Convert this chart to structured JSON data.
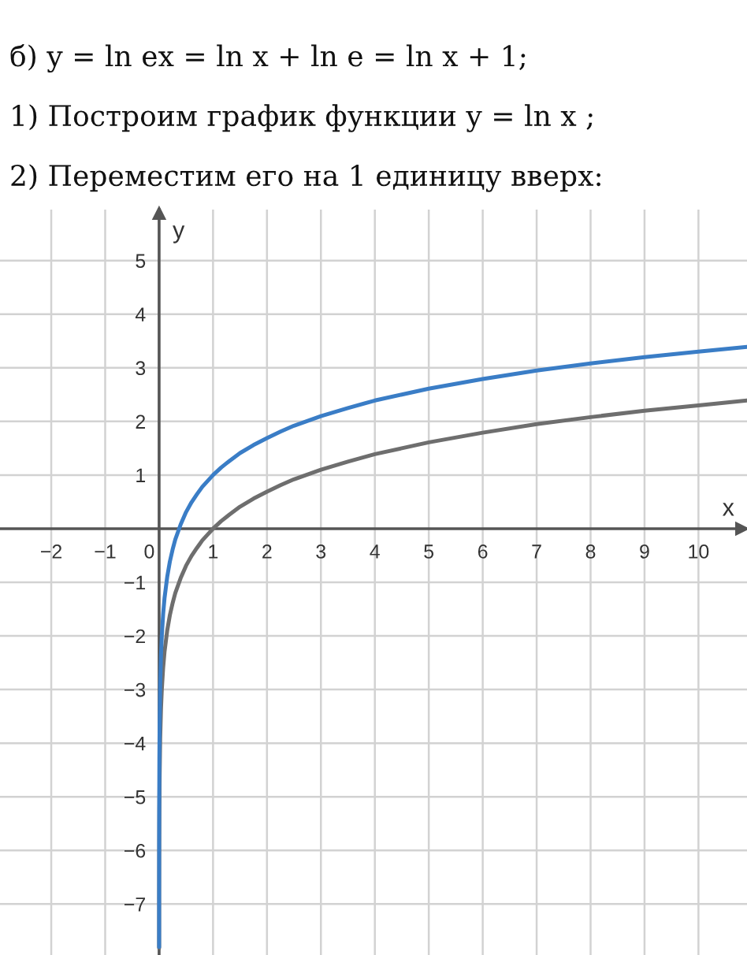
{
  "chart_data": {
    "type": "line",
    "annotations": [
      "б) y = ln ex = ln x + ln e = ln x + 1;",
      "1) Построим график функции y = ln x ;",
      "2) Переместим его на 1 единицу вверх:"
    ],
    "xlabel": "x",
    "ylabel": "y",
    "series": [
      {
        "color": "#6e6e6e",
        "x": [
          0.0004,
          0.001,
          0.002,
          0.005,
          0.01,
          0.02,
          0.035,
          0.05,
          0.075,
          0.1,
          0.15,
          0.2,
          0.25,
          0.3,
          0.4,
          0.5,
          0.6,
          0.7,
          0.75,
          0.8,
          0.9,
          1,
          1.15,
          1.25,
          1.3,
          1.5,
          1.75,
          2,
          2.25,
          2.5,
          3,
          3.5,
          4,
          4.5,
          5,
          6,
          7,
          8,
          9,
          10,
          10.9
        ],
        "values": [
          -7.82,
          -6.91,
          -6.21,
          -5.3,
          -4.61,
          -3.91,
          -3.35,
          -3.0,
          -2.59,
          -2.3,
          -1.9,
          -1.61,
          -1.39,
          -1.2,
          -0.92,
          -0.69,
          -0.51,
          -0.36,
          -0.29,
          -0.22,
          -0.11,
          0.0,
          0.14,
          0.22,
          0.26,
          0.41,
          0.56,
          0.69,
          0.81,
          0.92,
          1.1,
          1.25,
          1.39,
          1.5,
          1.61,
          1.79,
          1.95,
          2.08,
          2.2,
          2.3,
          2.39
        ]
      },
      {
        "color": "#3a7dc6",
        "x": [
          0.00015,
          0.0004,
          0.001,
          0.002,
          0.005,
          0.01,
          0.02,
          0.035,
          0.05,
          0.075,
          0.1,
          0.15,
          0.2,
          0.25,
          0.3,
          0.4,
          0.5,
          0.6,
          0.7,
          0.75,
          0.8,
          0.9,
          1,
          1.15,
          1.25,
          1.3,
          1.5,
          1.75,
          2,
          2.25,
          2.5,
          3,
          3.5,
          4,
          4.5,
          5,
          6,
          7,
          8,
          9,
          10,
          10.9
        ],
        "values": [
          -7.8,
          -6.82,
          -5.91,
          -5.21,
          -4.3,
          -3.61,
          -2.91,
          -2.35,
          -2.0,
          -1.59,
          -1.3,
          -0.9,
          -0.61,
          -0.39,
          -0.2,
          0.08,
          0.31,
          0.49,
          0.64,
          0.71,
          0.78,
          0.89,
          1.0,
          1.14,
          1.22,
          1.26,
          1.41,
          1.56,
          1.69,
          1.81,
          1.92,
          2.1,
          2.25,
          2.39,
          2.5,
          2.61,
          2.79,
          2.95,
          3.08,
          3.2,
          3.3,
          3.39
        ]
      }
    ],
    "xlim": [
      -2.95,
      10.9
    ],
    "ylim": [
      -7.95,
      5.95
    ],
    "xticks": [
      {
        "value": -2,
        "label": "−2"
      },
      {
        "value": -1,
        "label": "−1"
      },
      0,
      1,
      2,
      3,
      4,
      5,
      6,
      7,
      8,
      9,
      10
    ],
    "yticks": [
      {
        "value": -7,
        "label": "−7"
      },
      {
        "value": -6,
        "label": "−6"
      },
      {
        "value": -5,
        "label": "−5"
      },
      {
        "value": -4,
        "label": "−4"
      },
      {
        "value": -3,
        "label": "−3"
      },
      {
        "value": -2,
        "label": "−2"
      },
      {
        "value": -1,
        "label": "−1"
      },
      1,
      2,
      3,
      4,
      5
    ],
    "grid": true
  }
}
